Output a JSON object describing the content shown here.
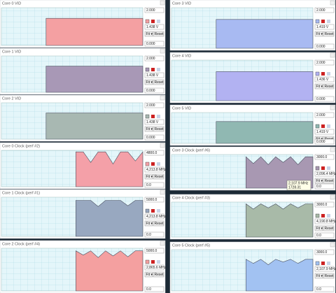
{
  "buttons": [
    "Fit ▾",
    "Reset"
  ],
  "tooltip": [
    "2,107.9 MHz",
    "1728.31"
  ],
  "panels": [
    {
      "title": "Core 0 VID",
      "color": "#f4a0a2",
      "max": {
        "value": 2,
        "label": "2.000"
      },
      "min": {
        "value": 0,
        "label": "0.000"
      },
      "current": "1.438 V",
      "values": [
        null,
        null,
        null,
        null,
        null,
        null,
        1.438,
        1.438,
        1.438,
        1.438,
        1.438,
        1.438,
        1.438,
        1.438,
        1.438,
        1.438,
        1.438,
        1.438,
        1.438,
        1.438
      ]
    },
    {
      "title": "Core 1 VID",
      "color": "#a898b6",
      "max": {
        "value": 2,
        "label": "2.000"
      },
      "min": {
        "value": 0,
        "label": "0.000"
      },
      "current": "1.438 V",
      "values": [
        null,
        null,
        null,
        null,
        null,
        null,
        1.438,
        1.438,
        1.438,
        1.438,
        1.438,
        1.438,
        1.438,
        1.438,
        1.438,
        1.438,
        1.438,
        1.438,
        1.438,
        1.438
      ]
    },
    {
      "title": "Core 2 VID",
      "color": "#a8b8b2",
      "max": {
        "value": 2,
        "label": "2.000"
      },
      "min": {
        "value": 0,
        "label": "0.000"
      },
      "current": "1.438 V",
      "values": [
        null,
        null,
        null,
        null,
        null,
        null,
        1.438,
        1.438,
        1.438,
        1.438,
        1.438,
        1.438,
        1.438,
        1.438,
        1.438,
        1.438,
        1.438,
        1.438,
        1.438,
        1.438
      ]
    },
    {
      "title": "Core 0 Clock (perf #2)",
      "color": "#f4a0a8",
      "max": {
        "value": 4800,
        "label": "4800.0"
      },
      "min": {
        "value": 0,
        "label": "0.0"
      },
      "current": "4,213.8 MHz",
      "values": [
        null,
        null,
        null,
        null,
        null,
        null,
        null,
        null,
        null,
        null,
        4600,
        4600,
        3200,
        4600,
        4600,
        3000,
        4600,
        4600,
        3400,
        4600
      ]
    },
    {
      "title": "Core 1 Clock (perf #1)",
      "color": "#98a8c0",
      "max": {
        "value": 5000,
        "label": "5000.0"
      },
      "min": {
        "value": 0,
        "label": "0.0"
      },
      "current": "4,213.8 MHz",
      "values": [
        null,
        null,
        null,
        null,
        null,
        null,
        null,
        null,
        null,
        null,
        4600,
        4600,
        4600,
        3800,
        4600,
        4600,
        4600,
        3900,
        4600,
        4600
      ]
    },
    {
      "title": "Core 2 Clock (perf #4)",
      "color": "#f4a0a0",
      "max": {
        "value": 5000,
        "label": "5000.0"
      },
      "min": {
        "value": 0,
        "label": "0.0"
      },
      "current": "2,865.6 MHz",
      "values": [
        null,
        null,
        null,
        null,
        null,
        null,
        null,
        null,
        null,
        null,
        4700,
        4200,
        4700,
        3900,
        4700,
        4100,
        4700,
        4000,
        4700,
        4700
      ]
    },
    {
      "title": "Core 3 VID",
      "color": "#a8baf2",
      "max": {
        "value": 2,
        "label": "2.000"
      },
      "min": {
        "value": 0,
        "label": "0.000"
      },
      "current": "1.419 V",
      "values": [
        null,
        null,
        null,
        null,
        null,
        null,
        1.419,
        1.419,
        1.419,
        1.419,
        1.419,
        1.419,
        1.419,
        1.419,
        1.419,
        1.419,
        1.419,
        1.419,
        1.419,
        1.419
      ]
    },
    {
      "title": "Core 4 VID",
      "color": "#b2b2f2",
      "max": {
        "value": 2,
        "label": "2.000"
      },
      "min": {
        "value": 0,
        "label": "0.000"
      },
      "current": "1.436 V",
      "values": [
        null,
        null,
        null,
        null,
        null,
        null,
        1.436,
        1.436,
        1.436,
        1.436,
        1.436,
        1.436,
        1.436,
        1.436,
        1.436,
        1.436,
        1.436,
        1.436,
        1.436,
        1.436
      ]
    },
    {
      "title": "Core 5 VID",
      "color": "#90b8b2",
      "max": {
        "value": 2,
        "label": "2.000"
      },
      "min": {
        "value": 0,
        "label": "0.000"
      },
      "current": "1.419 V",
      "values": [
        null,
        null,
        null,
        null,
        null,
        null,
        1.419,
        1.419,
        1.419,
        1.419,
        1.419,
        1.419,
        1.419,
        1.419,
        1.419,
        1.419,
        1.419,
        1.419,
        1.419,
        1.419
      ]
    },
    {
      "title": "Core 3 Clock (perf #6)",
      "color": "#a898b2",
      "max": {
        "value": 3000,
        "label": "3000.0"
      },
      "min": {
        "value": 0,
        "label": "0.0"
      },
      "current": "2,096.4 MHz",
      "values": [
        null,
        null,
        null,
        null,
        null,
        null,
        null,
        null,
        null,
        null,
        2800,
        2200,
        2800,
        2100,
        2800,
        2300,
        2800,
        2100,
        2800,
        2800
      ]
    },
    {
      "title": "Core 4 Clock (perf #3)",
      "color": "#a8baa8",
      "max": {
        "value": 3000,
        "label": "3000.0"
      },
      "min": {
        "value": 0,
        "label": "0.0"
      },
      "current": "4,190.8 MHz",
      "values": [
        null,
        null,
        null,
        null,
        null,
        null,
        null,
        null,
        null,
        null,
        2850,
        2400,
        2850,
        2500,
        2850,
        2400,
        2850,
        2500,
        2850,
        2850
      ]
    },
    {
      "title": "Core 5 Clock (perf #5)",
      "color": "#a2c2f2",
      "max": {
        "value": 3000,
        "label": "3000.0"
      },
      "min": {
        "value": 0,
        "label": "0.0"
      },
      "current": "2,107.9 MHz",
      "values": [
        null,
        null,
        null,
        null,
        null,
        null,
        null,
        null,
        null,
        null,
        2300,
        2000,
        2300,
        1900,
        2300,
        2100,
        2300,
        2000,
        2300,
        2300
      ]
    }
  ]
}
